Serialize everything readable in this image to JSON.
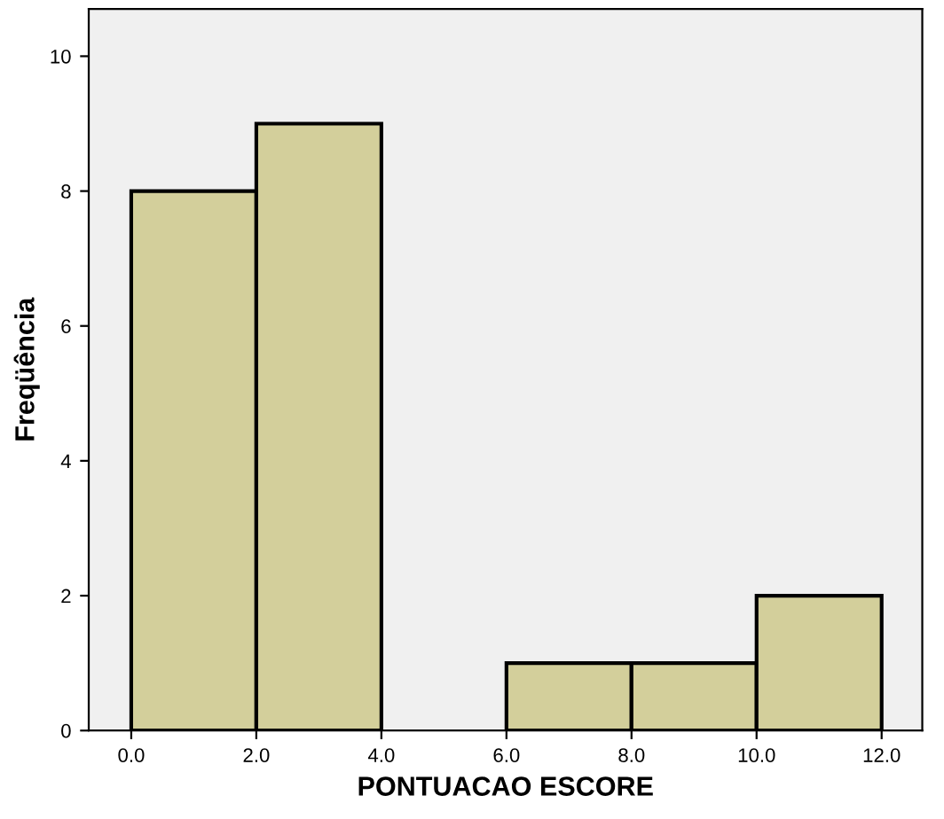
{
  "chart_data": {
    "type": "histogram",
    "xlabel": "PONTUACAO ESCORE",
    "ylabel": "Freqüência",
    "bins": [
      0,
      2,
      4,
      6,
      8,
      10,
      12
    ],
    "values": [
      8,
      9,
      0,
      1,
      1,
      2
    ],
    "color": "#d3cf9b",
    "xlim": [
      -0.68,
      12.65
    ],
    "ylim": [
      0,
      10.7
    ],
    "xticks": [
      {
        "value": 0,
        "label": "0.0"
      },
      {
        "value": 2,
        "label": "2.0"
      },
      {
        "value": 4,
        "label": "4.0"
      },
      {
        "value": 6,
        "label": "6.0"
      },
      {
        "value": 8,
        "label": "8.0"
      },
      {
        "value": 10,
        "label": "10.0"
      },
      {
        "value": 12,
        "label": "12.0"
      }
    ],
    "yticks": [
      0,
      2,
      4,
      6,
      8,
      10
    ],
    "grid": false
  }
}
